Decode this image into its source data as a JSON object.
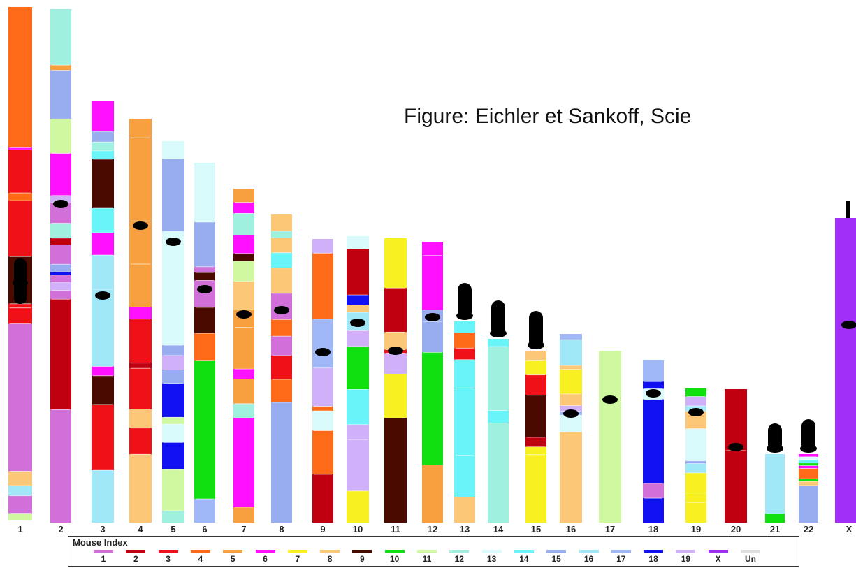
{
  "caption": "Figure: Eichler et Sankoff, Scie",
  "legend": {
    "title": "Mouse Index",
    "entries": [
      {
        "label": "1",
        "color": "#d070d8"
      },
      {
        "label": "2",
        "color": "#c00010"
      },
      {
        "label": "3",
        "color": "#f01018"
      },
      {
        "label": "4",
        "color": "#ff6a18"
      },
      {
        "label": "5",
        "color": "#f8a040"
      },
      {
        "label": "6",
        "color": "#ff10ff"
      },
      {
        "label": "7",
        "color": "#f8f020"
      },
      {
        "label": "8",
        "color": "#fcc878"
      },
      {
        "label": "9",
        "color": "#4a0a00"
      },
      {
        "label": "10",
        "color": "#10e010"
      },
      {
        "label": "11",
        "color": "#d0f8a0"
      },
      {
        "label": "12",
        "color": "#a0f0e0"
      },
      {
        "label": "13",
        "color": "#d8fafa"
      },
      {
        "label": "14",
        "color": "#68f4f8"
      },
      {
        "label": "15",
        "color": "#98acf0"
      },
      {
        "label": "16",
        "color": "#a0e8f8"
      },
      {
        "label": "17",
        "color": "#a0b8f8"
      },
      {
        "label": "18",
        "color": "#1010f0"
      },
      {
        "label": "19",
        "color": "#d0b0f8"
      },
      {
        "label": "X",
        "color": "#a030f8"
      },
      {
        "label": "Un",
        "color": "#e0e0e0"
      }
    ]
  },
  "chromosomes": [
    {
      "label": "1",
      "segments": [
        [
          0.0,
          0.274,
          "4"
        ],
        [
          0.274,
          0.278,
          "6"
        ],
        [
          0.278,
          0.362,
          "3"
        ],
        [
          0.362,
          0.377,
          "4"
        ],
        [
          0.377,
          0.486,
          "3"
        ],
        [
          0.486,
          0.578,
          "9"
        ],
        [
          0.578,
          0.586,
          "3"
        ],
        [
          0.586,
          0.617,
          "3"
        ],
        [
          0.617,
          0.904,
          "1"
        ],
        [
          0.904,
          0.932,
          "8"
        ],
        [
          0.932,
          0.952,
          "16"
        ],
        [
          0.952,
          0.986,
          "1"
        ],
        [
          0.986,
          1.0,
          "11"
        ]
      ]
    },
    {
      "label": "2",
      "segments": [
        [
          0.0,
          0.109,
          "12"
        ],
        [
          0.109,
          0.119,
          "5"
        ],
        [
          0.119,
          0.214,
          "15"
        ],
        [
          0.214,
          0.281,
          "11"
        ],
        [
          0.281,
          0.363,
          "6"
        ],
        [
          0.363,
          0.377,
          "19"
        ],
        [
          0.377,
          0.417,
          "1"
        ],
        [
          0.417,
          0.446,
          "12"
        ],
        [
          0.446,
          0.459,
          "2"
        ],
        [
          0.459,
          0.497,
          "1"
        ],
        [
          0.497,
          0.512,
          "15"
        ],
        [
          0.512,
          0.518,
          "18"
        ],
        [
          0.518,
          0.532,
          "1"
        ],
        [
          0.532,
          0.548,
          "19"
        ],
        [
          0.548,
          0.565,
          "1"
        ],
        [
          0.565,
          0.78,
          "2"
        ],
        [
          0.78,
          1.0,
          "1"
        ]
      ]
    },
    {
      "label": "3",
      "segments": [
        [
          0.0,
          0.073,
          "6"
        ],
        [
          0.073,
          0.098,
          "15"
        ],
        [
          0.098,
          0.119,
          "12"
        ],
        [
          0.119,
          0.139,
          "14"
        ],
        [
          0.139,
          0.255,
          "9"
        ],
        [
          0.255,
          0.313,
          "14"
        ],
        [
          0.313,
          0.366,
          "6"
        ],
        [
          0.366,
          0.447,
          "16"
        ],
        [
          0.447,
          0.63,
          "16"
        ],
        [
          0.63,
          0.652,
          "6"
        ],
        [
          0.652,
          0.72,
          "9"
        ],
        [
          0.72,
          0.876,
          "3"
        ],
        [
          0.876,
          1.0,
          "16"
        ]
      ]
    },
    {
      "label": "4",
      "segments": [
        [
          0.0,
          0.047,
          "5"
        ],
        [
          0.047,
          0.253,
          "5"
        ],
        [
          0.253,
          0.36,
          "5"
        ],
        [
          0.36,
          0.466,
          "5"
        ],
        [
          0.466,
          0.496,
          "6"
        ],
        [
          0.496,
          0.605,
          "3"
        ],
        [
          0.605,
          0.618,
          "2"
        ],
        [
          0.618,
          0.719,
          "3"
        ],
        [
          0.719,
          0.766,
          "8"
        ],
        [
          0.766,
          0.831,
          "3"
        ],
        [
          0.831,
          1.0,
          "8"
        ]
      ]
    },
    {
      "label": "5",
      "segments": [
        [
          0.0,
          0.047,
          "13"
        ],
        [
          0.047,
          0.237,
          "15"
        ],
        [
          0.237,
          0.535,
          "13"
        ],
        [
          0.535,
          0.562,
          "15"
        ],
        [
          0.562,
          0.6,
          "19"
        ],
        [
          0.6,
          0.635,
          "15"
        ],
        [
          0.635,
          0.724,
          "18"
        ],
        [
          0.724,
          0.742,
          "11"
        ],
        [
          0.742,
          0.79,
          "13"
        ],
        [
          0.79,
          0.861,
          "18"
        ],
        [
          0.861,
          0.969,
          "11"
        ],
        [
          0.969,
          1.0,
          "12"
        ]
      ]
    },
    {
      "label": "6",
      "segments": [
        [
          0.0,
          0.165,
          "13"
        ],
        [
          0.165,
          0.289,
          "15"
        ],
        [
          0.289,
          0.305,
          "1"
        ],
        [
          0.305,
          0.327,
          "9"
        ],
        [
          0.327,
          0.402,
          "1"
        ],
        [
          0.402,
          0.474,
          "9"
        ],
        [
          0.474,
          0.549,
          "4"
        ],
        [
          0.549,
          0.934,
          "10"
        ],
        [
          0.934,
          1.0,
          "17"
        ]
      ]
    },
    {
      "label": "7",
      "segments": [
        [
          0.0,
          0.041,
          "5"
        ],
        [
          0.041,
          0.074,
          "6"
        ],
        [
          0.074,
          0.139,
          "12"
        ],
        [
          0.139,
          0.194,
          "6"
        ],
        [
          0.194,
          0.217,
          "9"
        ],
        [
          0.217,
          0.278,
          "11"
        ],
        [
          0.278,
          0.363,
          "8"
        ],
        [
          0.363,
          0.415,
          "5"
        ],
        [
          0.415,
          0.54,
          "5"
        ],
        [
          0.54,
          0.57,
          "6"
        ],
        [
          0.57,
          0.644,
          "5"
        ],
        [
          0.644,
          0.687,
          "12"
        ],
        [
          0.687,
          0.954,
          "6"
        ],
        [
          0.954,
          1.0,
          "5"
        ]
      ]
    },
    {
      "label": "8",
      "segments": [
        [
          0.0,
          0.054,
          "8"
        ],
        [
          0.054,
          0.076,
          "12"
        ],
        [
          0.076,
          0.124,
          "8"
        ],
        [
          0.124,
          0.174,
          "14"
        ],
        [
          0.174,
          0.256,
          "8"
        ],
        [
          0.256,
          0.341,
          "1"
        ],
        [
          0.341,
          0.395,
          "4"
        ],
        [
          0.395,
          0.458,
          "1"
        ],
        [
          0.458,
          0.535,
          "3"
        ],
        [
          0.535,
          0.61,
          "4"
        ],
        [
          0.61,
          1.0,
          "15"
        ]
      ]
    },
    {
      "label": "9",
      "segments": [
        [
          0.0,
          0.05,
          "19"
        ],
        [
          0.05,
          0.283,
          "4"
        ],
        [
          0.283,
          0.455,
          "17"
        ],
        [
          0.455,
          0.59,
          "19"
        ],
        [
          0.59,
          0.606,
          "4"
        ],
        [
          0.606,
          0.676,
          "13"
        ],
        [
          0.676,
          0.83,
          "4"
        ],
        [
          0.83,
          1.0,
          "2"
        ]
      ]
    },
    {
      "label": "10",
      "segments": [
        [
          0.0,
          0.044,
          "13"
        ],
        [
          0.044,
          0.205,
          "2"
        ],
        [
          0.205,
          0.24,
          "18"
        ],
        [
          0.24,
          0.266,
          "8"
        ],
        [
          0.266,
          0.33,
          "16"
        ],
        [
          0.33,
          0.385,
          "19"
        ],
        [
          0.385,
          0.535,
          "10"
        ],
        [
          0.535,
          0.658,
          "14"
        ],
        [
          0.658,
          0.71,
          "19"
        ],
        [
          0.71,
          0.89,
          "19"
        ],
        [
          0.89,
          1.0,
          "7"
        ]
      ]
    },
    {
      "label": "11",
      "segments": [
        [
          0.0,
          0.175,
          "7"
        ],
        [
          0.175,
          0.33,
          "2"
        ],
        [
          0.33,
          0.392,
          "8"
        ],
        [
          0.392,
          0.404,
          "3"
        ],
        [
          0.404,
          0.478,
          "19"
        ],
        [
          0.478,
          0.632,
          "7"
        ],
        [
          0.632,
          1.0,
          "9"
        ]
      ]
    },
    {
      "label": "12",
      "segments": [
        [
          0.0,
          0.049,
          "6"
        ],
        [
          0.049,
          0.243,
          "6"
        ],
        [
          0.243,
          0.284,
          "15"
        ],
        [
          0.284,
          0.394,
          "15"
        ],
        [
          0.394,
          0.795,
          "10"
        ],
        [
          0.795,
          1.0,
          "5"
        ]
      ]
    },
    {
      "label": "13",
      "segments": [
        [
          0.0,
          0.057,
          "14"
        ],
        [
          0.057,
          0.133,
          "4"
        ],
        [
          0.133,
          0.19,
          "3"
        ],
        [
          0.19,
          0.331,
          "14"
        ],
        [
          0.331,
          0.665,
          "14"
        ],
        [
          0.665,
          0.873,
          "14"
        ],
        [
          0.873,
          1.0,
          "8"
        ]
      ]
    },
    {
      "label": "14",
      "segments": [
        [
          0.0,
          0.042,
          "14"
        ],
        [
          0.042,
          0.39,
          "12"
        ],
        [
          0.39,
          0.458,
          "14"
        ],
        [
          0.458,
          1.0,
          "12"
        ]
      ]
    },
    {
      "label": "15",
      "segments": [
        [
          0.0,
          0.055,
          "8"
        ],
        [
          0.055,
          0.141,
          "7"
        ],
        [
          0.141,
          0.259,
          "3"
        ],
        [
          0.259,
          0.504,
          "9"
        ],
        [
          0.504,
          0.56,
          "2"
        ],
        [
          0.56,
          0.605,
          "7"
        ],
        [
          0.605,
          1.0,
          "7"
        ]
      ]
    },
    {
      "label": "16",
      "segments": [
        [
          0.0,
          0.03,
          "17"
        ],
        [
          0.03,
          0.167,
          "16"
        ],
        [
          0.167,
          0.187,
          "8"
        ],
        [
          0.187,
          0.318,
          "7"
        ],
        [
          0.318,
          0.38,
          "8"
        ],
        [
          0.38,
          0.41,
          "19"
        ],
        [
          0.41,
          0.43,
          "17"
        ],
        [
          0.43,
          0.52,
          "13"
        ],
        [
          0.52,
          1.0,
          "8"
        ]
      ]
    },
    {
      "label": "17",
      "segments": [
        [
          0.0,
          1.0,
          "11"
        ]
      ]
    },
    {
      "label": "18",
      "segments": [
        [
          0.0,
          0.134,
          "17"
        ],
        [
          0.134,
          0.178,
          "18"
        ],
        [
          0.178,
          0.243,
          "13"
        ],
        [
          0.243,
          0.759,
          "18"
        ],
        [
          0.759,
          0.85,
          "1"
        ],
        [
          0.85,
          1.0,
          "18"
        ]
      ]
    },
    {
      "label": "19",
      "segments": [
        [
          0.0,
          0.06,
          "10"
        ],
        [
          0.06,
          0.13,
          "19"
        ],
        [
          0.13,
          0.17,
          "16"
        ],
        [
          0.17,
          0.3,
          "8"
        ],
        [
          0.3,
          0.54,
          "13"
        ],
        [
          0.54,
          0.56,
          "15"
        ],
        [
          0.56,
          0.63,
          "16"
        ],
        [
          0.63,
          0.78,
          "7"
        ],
        [
          0.78,
          0.85,
          "7"
        ],
        [
          0.85,
          1.0,
          "7"
        ]
      ]
    },
    {
      "label": "20",
      "segments": [
        [
          0.0,
          0.46,
          "2"
        ],
        [
          0.46,
          1.0,
          "2"
        ]
      ]
    },
    {
      "label": "21",
      "segments": [
        [
          0.0,
          0.87,
          "16"
        ],
        [
          0.87,
          1.0,
          "10"
        ]
      ]
    },
    {
      "label": "22",
      "segments": [
        [
          0.0,
          0.04,
          "6"
        ],
        [
          0.04,
          0.08,
          "13"
        ],
        [
          0.08,
          0.13,
          "14"
        ],
        [
          0.13,
          0.17,
          "10"
        ],
        [
          0.17,
          0.21,
          "6"
        ],
        [
          0.21,
          0.36,
          "4"
        ],
        [
          0.36,
          0.4,
          "10"
        ],
        [
          0.4,
          0.46,
          "8"
        ],
        [
          0.46,
          1.0,
          "15"
        ]
      ]
    },
    {
      "label": "X",
      "segments": [
        [
          0.0,
          1.0,
          "X"
        ]
      ]
    }
  ]
}
